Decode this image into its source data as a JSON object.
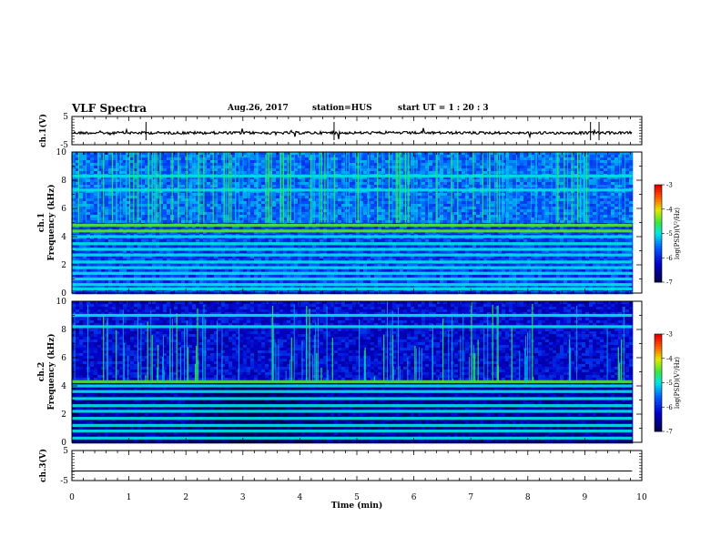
{
  "header": {
    "title": "VLF Spectra",
    "date": "Aug.26, 2017",
    "station": "station=HUS",
    "start": "start UT = 1 : 20 : 3"
  },
  "chart_data": [
    {
      "type": "line",
      "panel": "waveform",
      "ylabel": "ch.1(V)",
      "ylim": [
        -5,
        5
      ],
      "yticks": [
        "5",
        "-5"
      ],
      "xlim": [
        0,
        10
      ],
      "series": [
        {
          "x": [
            0,
            9.83
          ],
          "y": [
            -0.8,
            -0.8
          ]
        }
      ]
    },
    {
      "type": "heatmap",
      "panel": "spectrogram",
      "ylabel": "ch.1 Frequency (kHz)",
      "ylim": [
        0,
        10
      ],
      "yticks": [
        "0",
        "2",
        "4",
        "6",
        "8",
        "10"
      ],
      "xlim": [
        0,
        10
      ],
      "x_extent": [
        0,
        9.83
      ],
      "colorbar": {
        "label": "log(PSD)(V²/Hz)",
        "range": [
          -7,
          -3
        ],
        "ticks": [
          "-3",
          "-4",
          "-5",
          "-6",
          "-7"
        ]
      },
      "bands_khz": [
        0.3,
        0.6,
        1.0,
        1.4,
        1.8,
        2.2,
        2.7,
        3.1,
        3.5,
        4.0,
        4.4,
        4.8,
        7.3,
        8.3
      ],
      "background_level": -5.8
    },
    {
      "type": "heatmap",
      "panel": "spectrogram",
      "ylabel": "ch.2 Frequency (kHz)",
      "ylim": [
        0,
        10
      ],
      "yticks": [
        "0",
        "2",
        "4",
        "6",
        "8",
        "10"
      ],
      "xlim": [
        0,
        10
      ],
      "x_extent": [
        0,
        9.83
      ],
      "colorbar": {
        "label": "log(PSD)(V²/Hz)",
        "range": [
          -7,
          -3
        ],
        "ticks": [
          "-3",
          "-4",
          "-5",
          "-6",
          "-7"
        ]
      },
      "bands_khz": [
        0.3,
        0.8,
        1.2,
        1.7,
        2.2,
        2.6,
        3.1,
        3.6,
        4.0,
        4.3,
        8.2,
        9.0
      ],
      "background_level": -6.5
    },
    {
      "type": "line",
      "panel": "waveform",
      "ylabel": "ch.3(V)",
      "ylim": [
        -5,
        5
      ],
      "yticks": [
        "5",
        "-5"
      ],
      "xlim": [
        0,
        10
      ],
      "xlabel": "Time (min)",
      "xticks": [
        "0",
        "1",
        "2",
        "3",
        "4",
        "5",
        "6",
        "7",
        "8",
        "9",
        "10"
      ],
      "series": [
        {
          "x": [
            0,
            9.83
          ],
          "y": [
            -1.8,
            -1.8
          ]
        }
      ]
    }
  ]
}
